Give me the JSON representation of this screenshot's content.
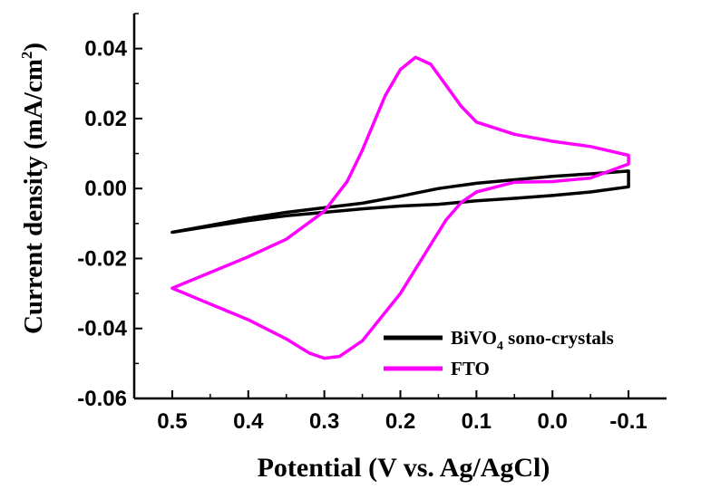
{
  "chart_data": {
    "type": "line",
    "title": "",
    "xlabel": "Potential (V vs. Ag/AgCl)",
    "ylabel": "Current density (mA/cm²)",
    "ylabel_parts": {
      "main": "Current density (mA/cm",
      "sup": "2",
      "end": ")"
    },
    "xlim": [
      0.55,
      -0.15
    ],
    "ylim": [
      -0.06,
      0.05
    ],
    "x_reversed": true,
    "xticks": [
      0.5,
      0.4,
      0.3,
      0.2,
      0.1,
      0.0,
      -0.1
    ],
    "xtick_labels": [
      "0.5",
      "0.4",
      "0.3",
      "0.2",
      "0.1",
      "0.0",
      "-0.1"
    ],
    "yticks": [
      -0.06,
      -0.04,
      -0.02,
      0.0,
      0.02,
      0.04
    ],
    "ytick_labels": [
      "-0.06",
      "-0.04",
      "-0.02",
      "0.00",
      "0.02",
      "0.04"
    ],
    "grid": false,
    "legend_position": "bottom-right",
    "series": [
      {
        "name": "BiVO4 sono-crystals",
        "label_main": "BiVO",
        "label_sub": "4",
        "label_end": " sono-crystals",
        "color": "#000000",
        "x": [
          0.5,
          0.45,
          0.4,
          0.35,
          0.3,
          0.25,
          0.2,
          0.15,
          0.1,
          0.05,
          0.0,
          -0.05,
          -0.1,
          -0.1,
          -0.05,
          0.0,
          0.05,
          0.1,
          0.15,
          0.2,
          0.25,
          0.3,
          0.35,
          0.4,
          0.45,
          0.5
        ],
        "y": [
          -0.0125,
          -0.0105,
          -0.0085,
          -0.0068,
          -0.0055,
          -0.0042,
          -0.0022,
          0.0,
          0.0015,
          0.0025,
          0.0035,
          0.0042,
          0.005,
          0.0005,
          -0.001,
          -0.002,
          -0.0028,
          -0.0035,
          -0.0045,
          -0.005,
          -0.0058,
          -0.0068,
          -0.0078,
          -0.0092,
          -0.0108,
          -0.0125
        ]
      },
      {
        "name": "FTO",
        "label_main": "FTO",
        "label_sub": "",
        "label_end": "",
        "color": "#ff00ff",
        "x": [
          0.5,
          0.45,
          0.4,
          0.35,
          0.3,
          0.27,
          0.25,
          0.22,
          0.2,
          0.18,
          0.16,
          0.14,
          0.12,
          0.1,
          0.05,
          0.0,
          -0.05,
          -0.1,
          -0.1,
          -0.05,
          0.0,
          0.05,
          0.1,
          0.12,
          0.14,
          0.16,
          0.2,
          0.25,
          0.28,
          0.3,
          0.32,
          0.35,
          0.4,
          0.45,
          0.5
        ],
        "y": [
          -0.0285,
          -0.024,
          -0.0195,
          -0.0145,
          -0.0065,
          0.002,
          0.011,
          0.0265,
          0.034,
          0.0375,
          0.0355,
          0.0295,
          0.0235,
          0.019,
          0.0155,
          0.0135,
          0.012,
          0.0095,
          0.007,
          0.003,
          0.002,
          0.0018,
          -0.001,
          -0.004,
          -0.009,
          -0.016,
          -0.03,
          -0.0435,
          -0.048,
          -0.0485,
          -0.047,
          -0.043,
          -0.0375,
          -0.033,
          -0.0285
        ]
      }
    ]
  }
}
